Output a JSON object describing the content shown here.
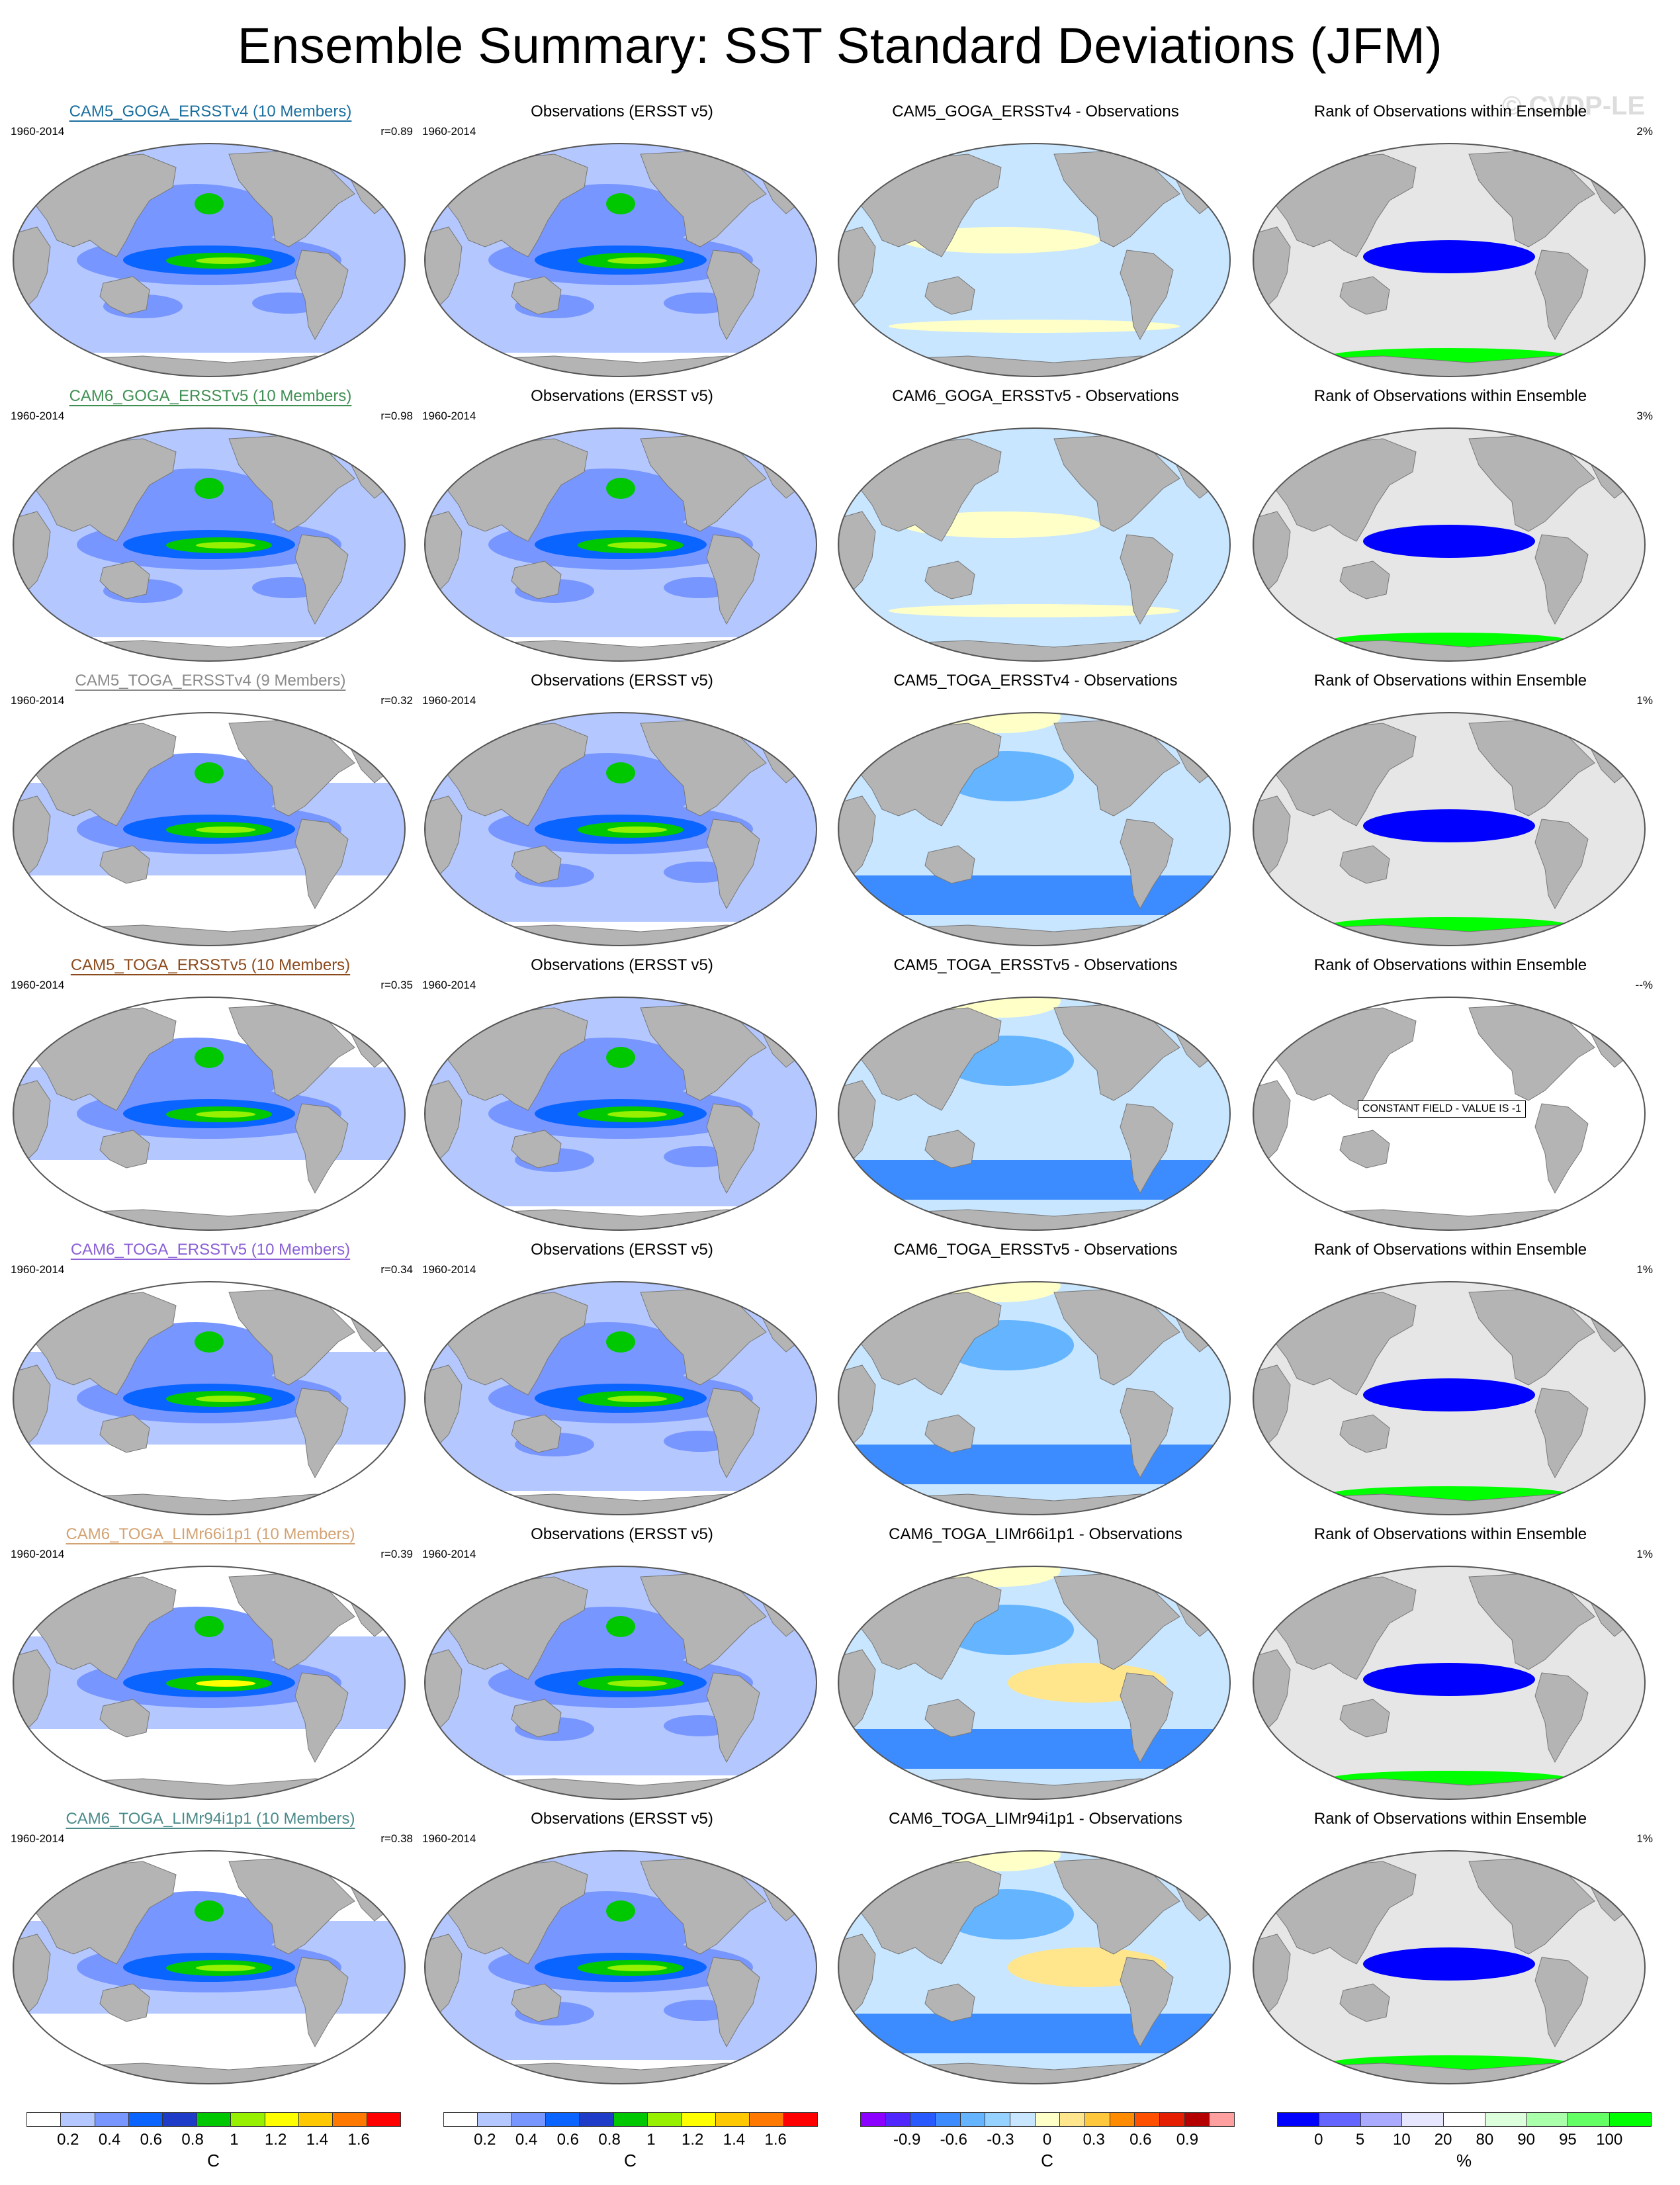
{
  "title": "Ensemble Summary: SST Standard Deviations (JFM)",
  "watermark": "© CVDP-LE",
  "colors": {
    "land": "#b4b4b4",
    "ocean_white": "#ffffff",
    "sd_scale": [
      "#ffffff",
      "#b4c8ff",
      "#7896ff",
      "#0a64ff",
      "#1e3cc8",
      "#00c800",
      "#96f000",
      "#ffff00",
      "#ffc800",
      "#ff7800",
      "#ff0000"
    ],
    "diff_scale": [
      "#8c00ff",
      "#5028ff",
      "#285aff",
      "#3c8cff",
      "#64b4ff",
      "#96d2ff",
      "#c8e6ff",
      "#ffffc8",
      "#ffe68c",
      "#ffc83c",
      "#ff8c00",
      "#ff5000",
      "#e61e00",
      "#b40000",
      "#ffa0a0"
    ],
    "rank_scale": [
      "#0000ff",
      "#6464ff",
      "#aaaaff",
      "#e6e6ff",
      "#ffffff",
      "#dcffdc",
      "#aaffaa",
      "#64ff64",
      "#00ff00"
    ]
  },
  "rows": [
    {
      "model": "CAM5_GOGA_ERSSTv4 (10 Members)",
      "model_color": "#1b6f9e",
      "period": "1960-2014",
      "r": "r=0.89",
      "obs_title": "Observations (ERSST v5)",
      "obs_period": "1960-2014",
      "diff_title": "CAM5_GOGA_ERSSTv4 - Observations",
      "rank_title": "Rank of Observations within Ensemble",
      "rank_pct": "2%"
    },
    {
      "model": "CAM6_GOGA_ERSSTv5 (10 Members)",
      "model_color": "#3f8f52",
      "period": "1960-2014",
      "r": "r=0.98",
      "obs_title": "Observations (ERSST v5)",
      "obs_period": "1960-2014",
      "diff_title": "CAM6_GOGA_ERSSTv5 - Observations",
      "rank_title": "Rank of Observations within Ensemble",
      "rank_pct": "3%"
    },
    {
      "model": "CAM5_TOGA_ERSSTv4 (9 Members)",
      "model_color": "#8a8a8a",
      "period": "1960-2014",
      "r": "r=0.32",
      "obs_title": "Observations (ERSST v5)",
      "obs_period": "1960-2014",
      "diff_title": "CAM5_TOGA_ERSSTv4 - Observations",
      "rank_title": "Rank of Observations within Ensemble",
      "rank_pct": "1%"
    },
    {
      "model": "CAM5_TOGA_ERSSTv5 (10 Members)",
      "model_color": "#8b4a1c",
      "period": "1960-2014",
      "r": "r=0.35",
      "obs_title": "Observations (ERSST v5)",
      "obs_period": "1960-2014",
      "diff_title": "CAM5_TOGA_ERSSTv5 - Observations",
      "rank_title": "Rank of Observations within Ensemble",
      "rank_pct": "--%",
      "notice": "CONSTANT FIELD - VALUE IS -1"
    },
    {
      "model": "CAM6_TOGA_ERSSTv5 (10 Members)",
      "model_color": "#8a5fd6",
      "period": "1960-2014",
      "r": "r=0.34",
      "obs_title": "Observations (ERSST v5)",
      "obs_period": "1960-2014",
      "diff_title": "CAM6_TOGA_ERSSTv5 - Observations",
      "rank_title": "Rank of Observations within Ensemble",
      "rank_pct": "1%"
    },
    {
      "model": "CAM6_TOGA_LIMr66i1p1 (10 Members)",
      "model_color": "#d4a373",
      "period": "1960-2014",
      "r": "r=0.39",
      "obs_title": "Observations (ERSST v5)",
      "obs_period": "1960-2014",
      "diff_title": "CAM6_TOGA_LIMr66i1p1 - Observations",
      "rank_title": "Rank of Observations within Ensemble",
      "rank_pct": "1%"
    },
    {
      "model": "CAM6_TOGA_LIMr94i1p1 (10 Members)",
      "model_color": "#4c8a8a",
      "period": "1960-2014",
      "r": "r=0.38",
      "obs_title": "Observations (ERSST v5)",
      "obs_period": "1960-2014",
      "diff_title": "CAM6_TOGA_LIMr94i1p1 - Observations",
      "rank_title": "Rank of Observations within Ensemble",
      "rank_pct": "1%"
    }
  ],
  "colorbars": [
    {
      "ticks": [
        "0.2",
        "0.4",
        "0.6",
        "0.8",
        "1",
        "1.2",
        "1.4",
        "1.6"
      ],
      "unit": "C",
      "scale": "sd_scale"
    },
    {
      "ticks": [
        "0.2",
        "0.4",
        "0.6",
        "0.8",
        "1",
        "1.2",
        "1.4",
        "1.6"
      ],
      "unit": "C",
      "scale": "sd_scale"
    },
    {
      "ticks": [
        "-0.9",
        "-0.6",
        "-0.3",
        "0",
        "0.3",
        "0.6",
        "0.9"
      ],
      "unit": "C",
      "scale": "diff_scale"
    },
    {
      "ticks": [
        "0",
        "5",
        "10",
        "20",
        "80",
        "90",
        "95",
        "100"
      ],
      "unit": "%",
      "scale": "rank_scale"
    }
  ]
}
